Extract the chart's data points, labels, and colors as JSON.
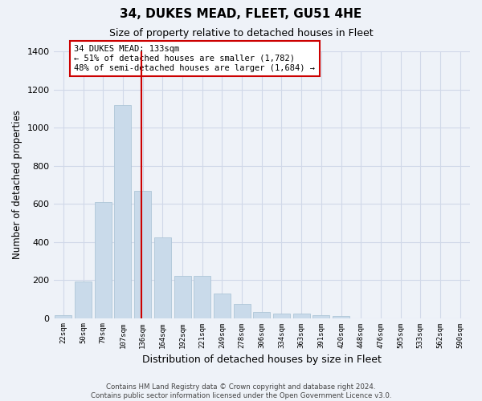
{
  "title": "34, DUKES MEAD, FLEET, GU51 4HE",
  "subtitle": "Size of property relative to detached houses in Fleet",
  "xlabel": "Distribution of detached houses by size in Fleet",
  "ylabel": "Number of detached properties",
  "bar_color": "#c9daea",
  "bar_edge_color": "#aec6d8",
  "grid_color": "#d0d8e8",
  "background_color": "#eef2f8",
  "vline_color": "#cc0000",
  "annotation_text": "34 DUKES MEAD: 133sqm\n← 51% of detached houses are smaller (1,782)\n48% of semi-detached houses are larger (1,684) →",
  "annotation_box_color": "white",
  "annotation_box_edge": "#cc0000",
  "categories": [
    "22sqm",
    "50sqm",
    "79sqm",
    "107sqm",
    "136sqm",
    "164sqm",
    "192sqm",
    "221sqm",
    "249sqm",
    "278sqm",
    "306sqm",
    "334sqm",
    "363sqm",
    "391sqm",
    "420sqm",
    "448sqm",
    "476sqm",
    "505sqm",
    "533sqm",
    "562sqm",
    "590sqm"
  ],
  "values": [
    15,
    190,
    610,
    1120,
    670,
    425,
    220,
    220,
    130,
    75,
    30,
    25,
    25,
    15,
    10,
    0,
    0,
    0,
    0,
    0,
    0
  ],
  "vline_index": 4,
  "ylim": [
    0,
    1400
  ],
  "yticks": [
    0,
    200,
    400,
    600,
    800,
    1000,
    1200,
    1400
  ],
  "footer": "Contains HM Land Registry data © Crown copyright and database right 2024.\nContains public sector information licensed under the Open Government Licence v3.0."
}
